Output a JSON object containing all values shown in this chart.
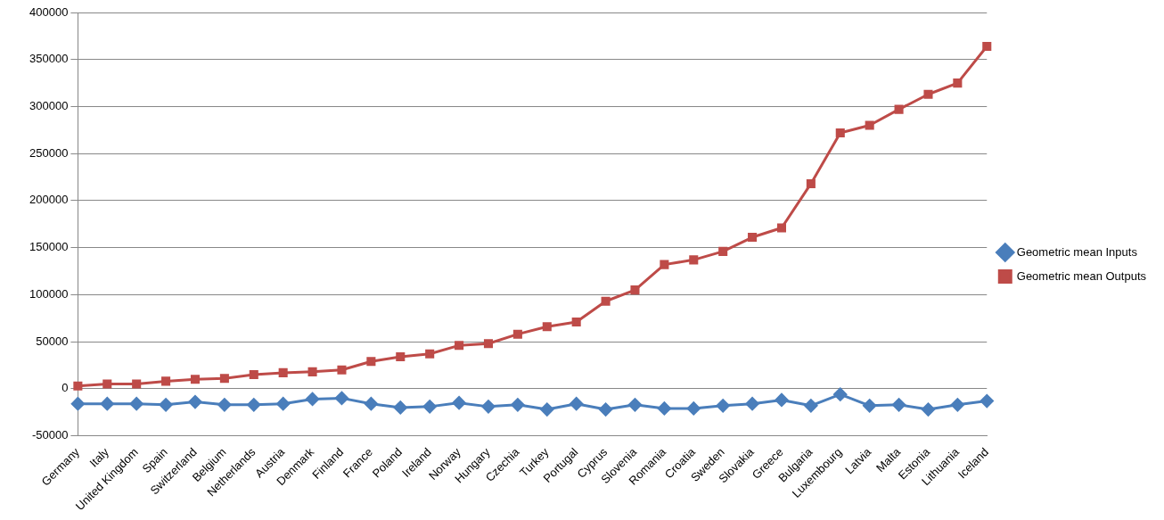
{
  "chart_data": {
    "type": "line",
    "categories": [
      "Germany",
      "Italy",
      "United Kingdom",
      "Spain",
      "Switzerland",
      "Belgium",
      "Netherlands",
      "Austria",
      "Denmark",
      "Finland",
      "France",
      "Poland",
      "Ireland",
      "Norway",
      "Hungary",
      "Czechia",
      "Turkey",
      "Portugal",
      "Cyprus",
      "Slovenia",
      "Romania",
      "Croatia",
      "Sweden",
      "Slovakia",
      "Greece",
      "Bulgaria",
      "Luxembourg",
      "Latvia",
      "Malta",
      "Estonia",
      "Lithuania",
      "Iceland"
    ],
    "series": [
      {
        "name": "Geometric mean Inputs",
        "color": "#4a7ebb",
        "marker": "diamond",
        "values": [
          -16000,
          -16000,
          -16000,
          -17000,
          -14000,
          -17000,
          -17000,
          -16000,
          -11000,
          -10000,
          -16000,
          -20000,
          -19000,
          -15000,
          -19000,
          -17000,
          -22000,
          -16000,
          -22000,
          -17000,
          -21000,
          -21000,
          -18000,
          -16000,
          -12000,
          -18000,
          -6000,
          -18000,
          -17000,
          -22000,
          -17000,
          -13000
        ]
      },
      {
        "name": "Geometric mean Outputs",
        "color": "#be4b48",
        "marker": "square",
        "values": [
          3000,
          5000,
          5000,
          8000,
          10000,
          11000,
          15000,
          17000,
          18000,
          20000,
          29000,
          34000,
          37000,
          46000,
          48000,
          58000,
          66000,
          71000,
          93000,
          105000,
          132000,
          137000,
          146000,
          161000,
          171000,
          218000,
          272000,
          280000,
          297000,
          313000,
          325000,
          364000
        ]
      }
    ],
    "ylim": [
      -50000,
      400000
    ],
    "yticks": [
      -50000,
      0,
      50000,
      100000,
      150000,
      200000,
      250000,
      300000,
      350000,
      400000
    ],
    "grid": "y",
    "legend": "right"
  }
}
